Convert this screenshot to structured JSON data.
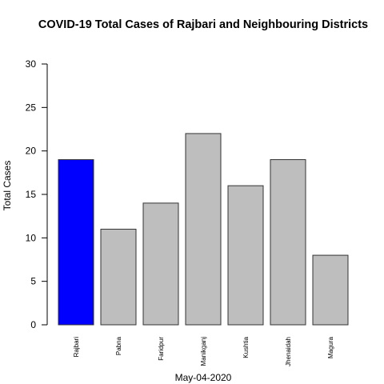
{
  "chart_data": {
    "type": "bar",
    "title": "COVID-19 Total Cases of Rajbari and Neighbouring Districts",
    "xlabel": "May-04-2020",
    "ylabel": "Total Cases",
    "ylim": [
      0,
      30
    ],
    "yticks": [
      0,
      5,
      10,
      15,
      20,
      25,
      30
    ],
    "categories": [
      "Rajbari",
      "Pabna",
      "Faridpur",
      "Manikganj",
      "Kushtia",
      "Jhenaidah",
      "Magura"
    ],
    "values": [
      19,
      11,
      14,
      22,
      16,
      19,
      8
    ],
    "colors": [
      "#0000ff",
      "#bebebe",
      "#bebebe",
      "#bebebe",
      "#bebebe",
      "#bebebe",
      "#bebebe"
    ],
    "grid": false,
    "legend": "none"
  }
}
